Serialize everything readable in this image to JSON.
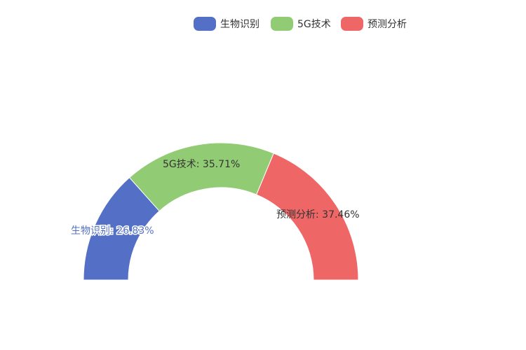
{
  "chart_data": {
    "type": "pie",
    "variant": "half-donut",
    "title": "",
    "legend_position": "top-right",
    "categories": [
      "生物识别",
      "5G技术",
      "预测分析"
    ],
    "percentages": [
      26.83,
      35.71,
      37.46
    ],
    "labels": [
      "生物识别: 26.83%",
      "5G技术: 35.71%",
      "预测分析: 37.46%"
    ],
    "colors": [
      "#5470c6",
      "#91cc75",
      "#ee6666"
    ]
  }
}
